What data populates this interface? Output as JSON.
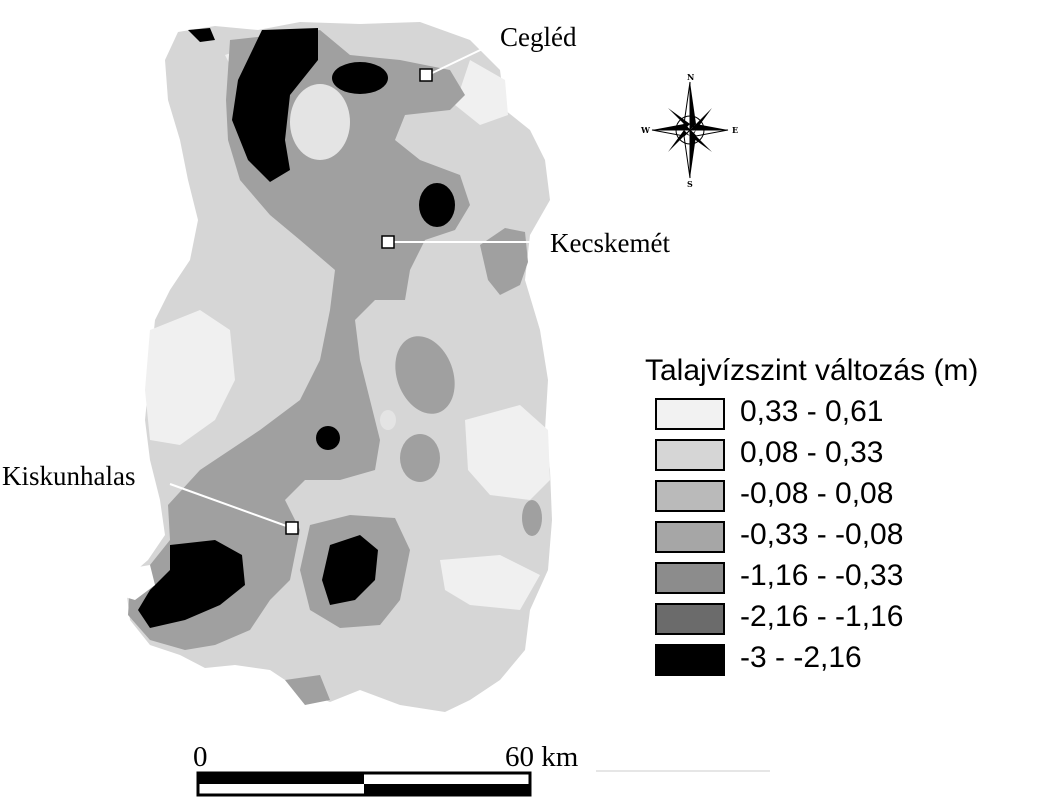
{
  "cities": [
    {
      "name": "Cegléd"
    },
    {
      "name": "Kecskemét"
    },
    {
      "name": "Kiskunhalas"
    }
  ],
  "compass": {
    "n": "N",
    "e": "E",
    "s": "S",
    "w": "W"
  },
  "legend": {
    "title": "Talajvízszint változás (m)",
    "classes": [
      {
        "label": "0,33 - 0,61",
        "color": "#f2f2f2"
      },
      {
        "label": "0,08 - 0,33",
        "color": "#d6d6d6"
      },
      {
        "label": "-0,08 - 0,08",
        "color": "#bababa"
      },
      {
        "label": "-0,33 - -0,08",
        "color": "#a6a6a6"
      },
      {
        "label": "-1,16 - -0,33",
        "color": "#8c8c8c"
      },
      {
        "label": "-2,16 - -1,16",
        "color": "#6b6b6b"
      },
      {
        "label": "-3 - -2,16",
        "color": "#000000"
      }
    ]
  },
  "scale_bar": {
    "start_label": "0",
    "end_label": "60 km"
  }
}
